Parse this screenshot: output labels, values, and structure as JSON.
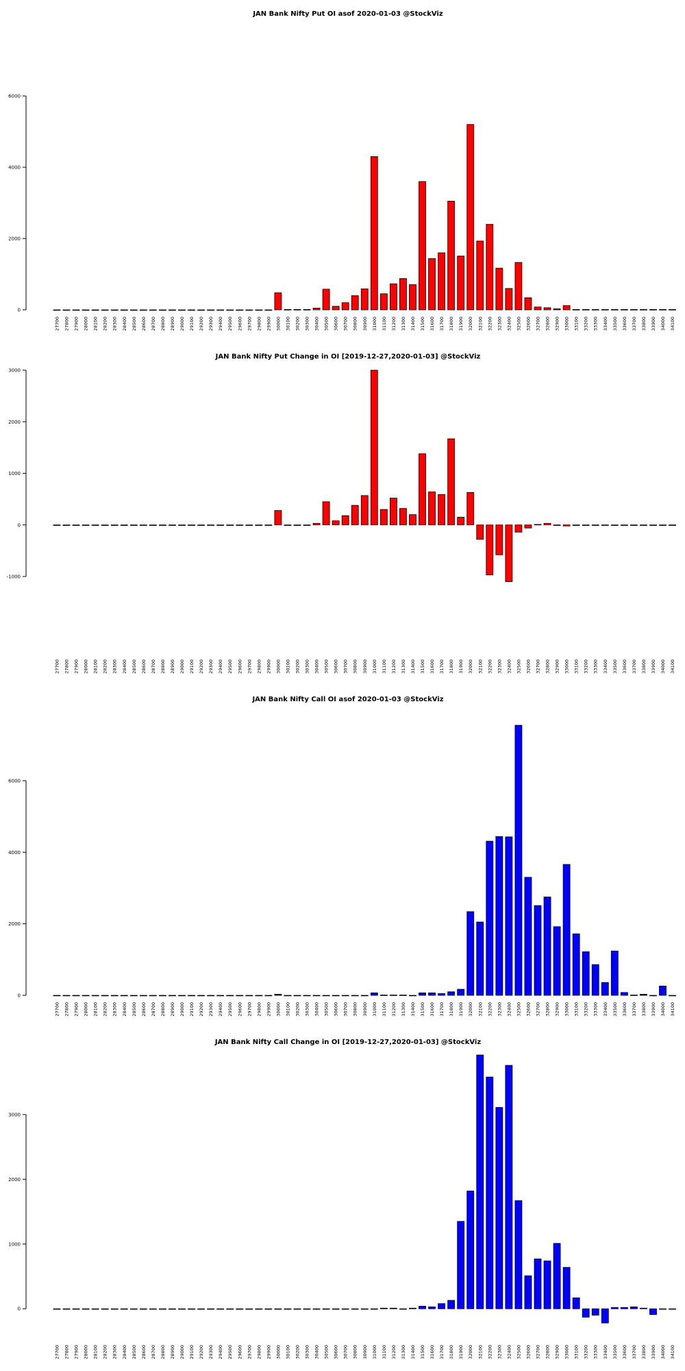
{
  "page": {
    "background": "#ffffff"
  },
  "strikes": [
    "27700",
    "27800",
    "27900",
    "28000",
    "28100",
    "28200",
    "28300",
    "28400",
    "28500",
    "28600",
    "28700",
    "28800",
    "28900",
    "29000",
    "29100",
    "29200",
    "29300",
    "29400",
    "29500",
    "29600",
    "29700",
    "29800",
    "29900",
    "30000",
    "30100",
    "30200",
    "30300",
    "30400",
    "30500",
    "30600",
    "30700",
    "30800",
    "30900",
    "31000",
    "31100",
    "31200",
    "31300",
    "31400",
    "31500",
    "31600",
    "31700",
    "31800",
    "31900",
    "32000",
    "32100",
    "32200",
    "32300",
    "32400",
    "32500",
    "32600",
    "32700",
    "32800",
    "32900",
    "33000",
    "33100",
    "33200",
    "33300",
    "33400",
    "33500",
    "33600",
    "33700",
    "33800",
    "33900",
    "34000",
    "34100"
  ],
  "chart_data": [
    {
      "type": "bar",
      "title": "JAN Bank Nifty Put OI asof 2020-01-03 @StockViz",
      "color": "#ff0000",
      "ylim": [
        0,
        6000
      ],
      "yticks": [
        0,
        2000,
        4000,
        6000
      ],
      "values": [
        0,
        0,
        0,
        0,
        0,
        0,
        0,
        0,
        0,
        0,
        0,
        0,
        0,
        0,
        0,
        0,
        0,
        0,
        0,
        0,
        0,
        0,
        0,
        480,
        10,
        10,
        10,
        50,
        580,
        100,
        200,
        400,
        590,
        4300,
        450,
        730,
        880,
        710,
        3600,
        1440,
        1600,
        3050,
        1510,
        5200,
        1930,
        2400,
        1170,
        600,
        1330,
        340,
        80,
        60,
        30,
        120,
        10,
        10,
        10,
        10,
        10,
        10,
        10,
        10,
        10,
        10,
        10
      ]
    },
    {
      "type": "bar",
      "title": "JAN Bank Nifty Put Change in OI [2019-12-27,2020-01-03] @StockViz",
      "color": "#ff0000",
      "ylim": [
        -1000,
        3000
      ],
      "yticks": [
        -1000,
        0,
        1000,
        2000,
        3000
      ],
      "values": [
        0,
        0,
        0,
        0,
        0,
        0,
        0,
        0,
        0,
        0,
        0,
        0,
        0,
        0,
        0,
        0,
        0,
        0,
        0,
        0,
        0,
        0,
        0,
        280,
        0,
        0,
        0,
        30,
        450,
        80,
        180,
        380,
        570,
        3000,
        300,
        520,
        320,
        200,
        1380,
        640,
        590,
        1670,
        150,
        630,
        -280,
        -970,
        -580,
        -1100,
        -140,
        -60,
        10,
        30,
        0,
        -20,
        0,
        0,
        0,
        0,
        0,
        0,
        0,
        0,
        0,
        0,
        0
      ]
    },
    {
      "type": "bar",
      "title": "JAN Bank Nifty Call OI asof 2020-01-03 @StockViz",
      "color": "#0000ff",
      "ylim": [
        0,
        7550
      ],
      "yticks": [
        0,
        2000,
        4000,
        6000
      ],
      "values": [
        0,
        0,
        0,
        0,
        0,
        0,
        0,
        0,
        0,
        0,
        0,
        0,
        0,
        0,
        0,
        0,
        0,
        0,
        0,
        0,
        0,
        0,
        0,
        30,
        0,
        0,
        0,
        0,
        0,
        0,
        0,
        0,
        0,
        70,
        10,
        10,
        10,
        0,
        70,
        70,
        50,
        100,
        170,
        2340,
        2050,
        4310,
        4440,
        4430,
        7550,
        3300,
        2510,
        2750,
        1920,
        3660,
        1720,
        1220,
        860,
        360,
        1240,
        80,
        10,
        30,
        0,
        260,
        0
      ]
    },
    {
      "type": "bar",
      "title": "JAN Bank Nifty Call Change in OI [2019-12-27,2020-01-03] @StockViz",
      "color": "#0000ff",
      "ylim": [
        -220,
        3920
      ],
      "yticks": [
        0,
        1000,
        2000,
        3000
      ],
      "values": [
        0,
        0,
        0,
        0,
        0,
        0,
        0,
        0,
        0,
        0,
        0,
        0,
        0,
        0,
        0,
        0,
        0,
        0,
        0,
        0,
        0,
        0,
        0,
        0,
        0,
        0,
        0,
        0,
        0,
        0,
        0,
        0,
        0,
        0,
        10,
        10,
        0,
        10,
        40,
        30,
        80,
        130,
        1350,
        1820,
        3920,
        3580,
        3110,
        3760,
        1670,
        510,
        770,
        740,
        1010,
        640,
        170,
        -130,
        -100,
        -220,
        20,
        20,
        30,
        10,
        -90,
        0,
        0
      ]
    }
  ]
}
